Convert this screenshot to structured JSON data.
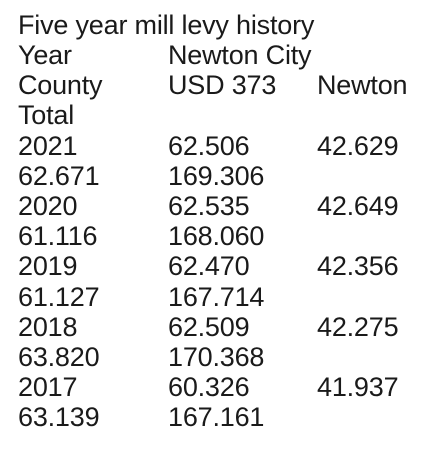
{
  "title": "Five year mill levy history",
  "lines": [
    [
      "Year",
      "Newton City",
      ""
    ],
    [
      "County",
      "USD 373",
      "Newton"
    ],
    [
      "Total",
      "",
      ""
    ],
    [
      "2021",
      "62.506",
      "42.629"
    ],
    [
      "62.671",
      "169.306",
      ""
    ],
    [
      "2020",
      "62.535",
      "42.649"
    ],
    [
      "61.116",
      "168.060",
      ""
    ],
    [
      "2019",
      "62.470",
      "42.356"
    ],
    [
      "61.127",
      "167.714",
      ""
    ],
    [
      "2018",
      "62.509",
      "42.275"
    ],
    [
      "63.820",
      "170.368",
      ""
    ],
    [
      "2017",
      "60.326",
      "41.937"
    ],
    [
      "63.139",
      "167.161",
      ""
    ]
  ]
}
